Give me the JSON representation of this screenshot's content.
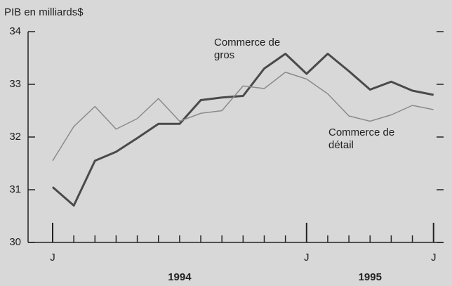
{
  "chart_data": {
    "type": "line",
    "y_axis_label": "PIB en milliards$",
    "categories": [
      "J",
      null,
      null,
      null,
      null,
      null,
      null,
      null,
      null,
      null,
      null,
      null,
      "J",
      null,
      null,
      null,
      null,
      null,
      "J"
    ],
    "years": [
      "1994",
      "1995"
    ],
    "ylim": [
      30,
      34
    ],
    "yticks": [
      30,
      31,
      32,
      33,
      34
    ],
    "series": [
      {
        "name": "Commerce de gros",
        "color": "#4a4a4a",
        "width": 3,
        "values": [
          31.05,
          30.7,
          31.55,
          31.72,
          31.98,
          32.25,
          32.25,
          32.7,
          32.75,
          32.78,
          33.3,
          33.58,
          33.2,
          33.58,
          33.25,
          32.9,
          33.05,
          32.88,
          32.8
        ]
      },
      {
        "name": "Commerce de détail",
        "color": "#8a8a8a",
        "width": 1.5,
        "values": [
          31.55,
          32.2,
          32.58,
          32.15,
          32.35,
          32.73,
          32.3,
          32.45,
          32.5,
          32.97,
          32.92,
          33.23,
          33.1,
          32.82,
          32.4,
          32.3,
          32.42,
          32.6,
          32.52
        ]
      }
    ]
  }
}
